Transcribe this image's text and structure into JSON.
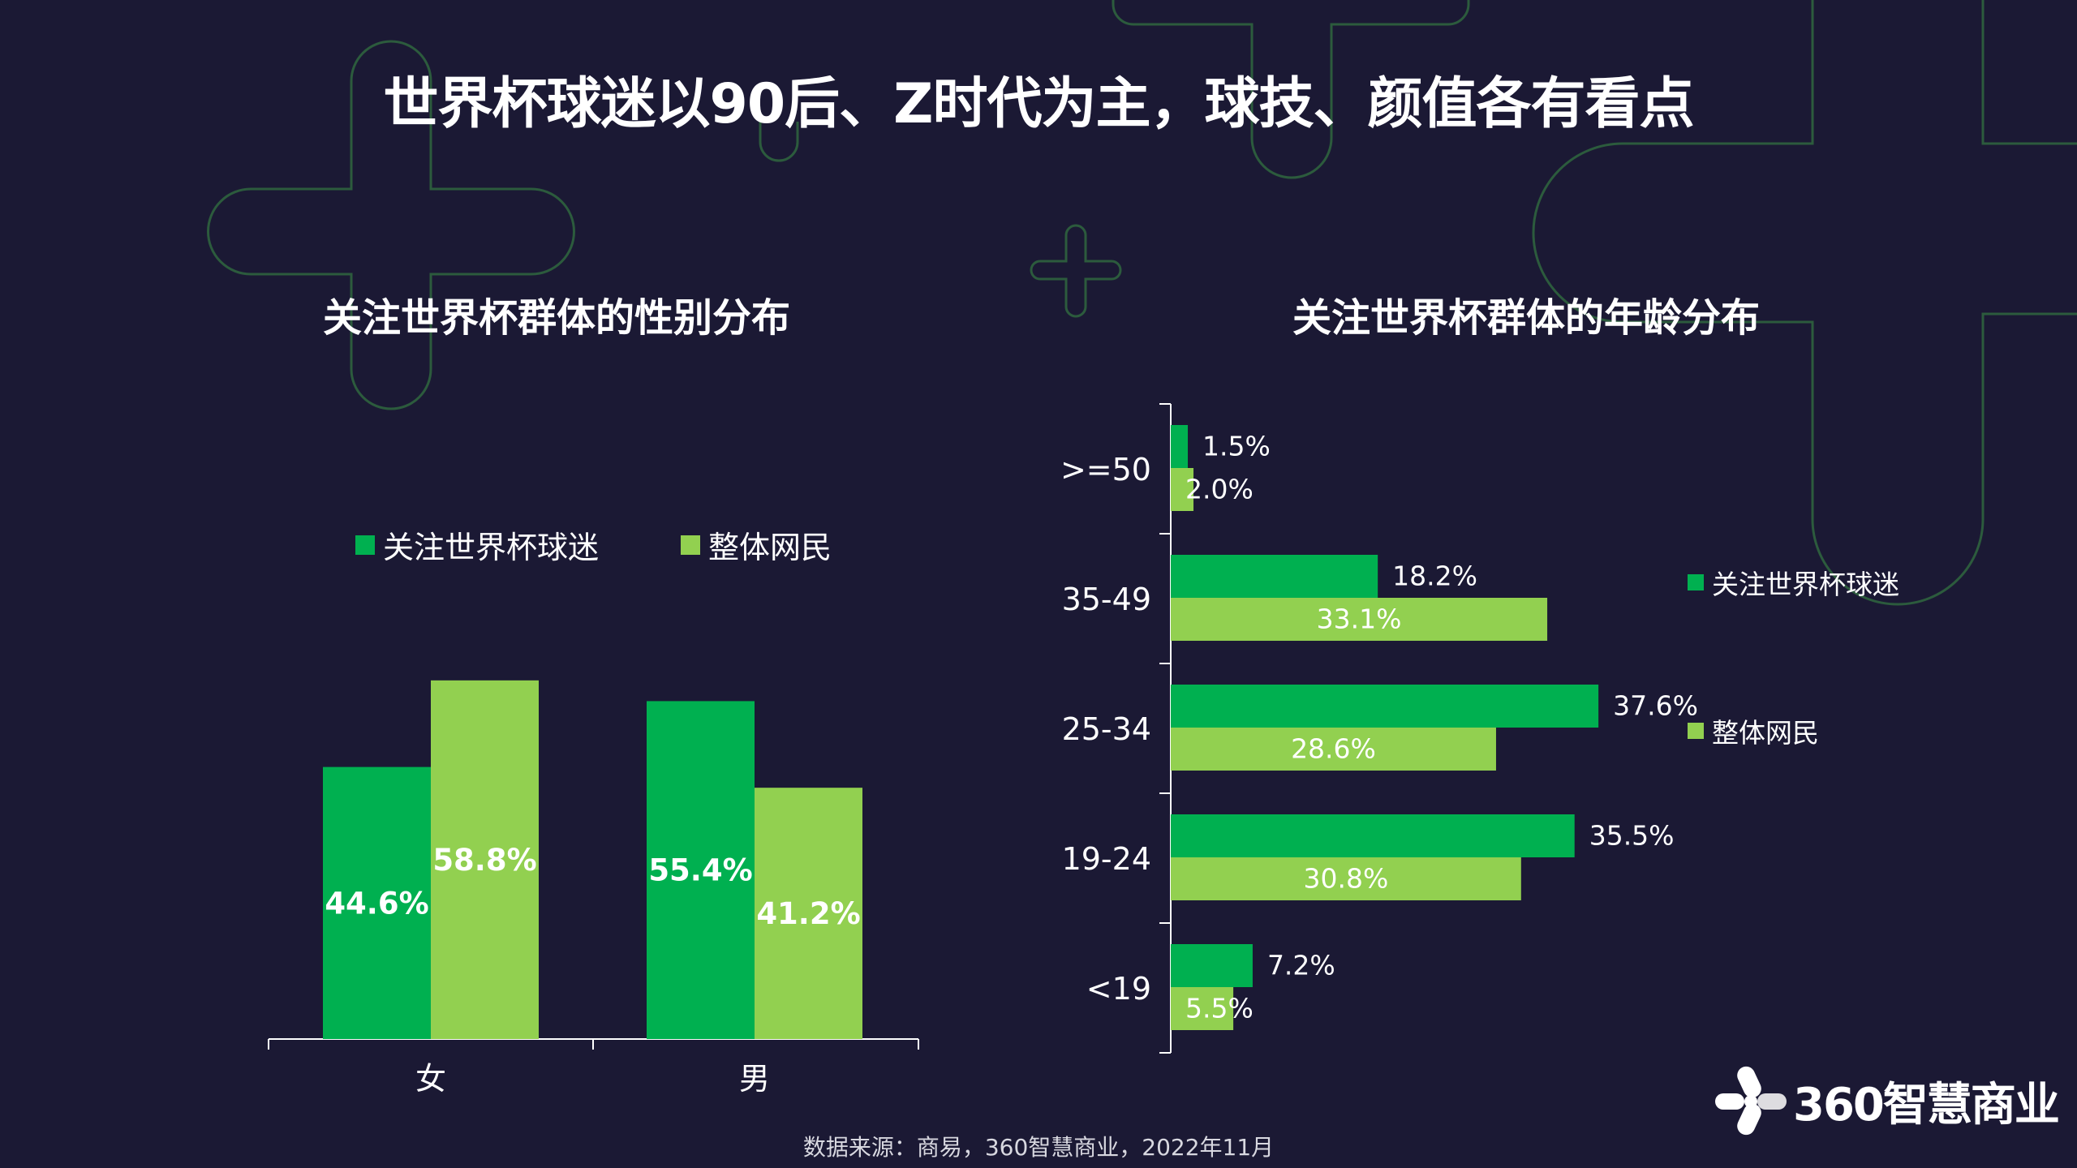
{
  "title": "世界杯球迷以90后、Z时代为主，球技、颜值各有看点",
  "colors": {
    "background": "#1b1934",
    "fans": "#00b050",
    "netizens": "#92d050",
    "deco": "#2c5b3d"
  },
  "source": "数据来源：商易，360智慧商业，2022年11月",
  "logo": {
    "text": "360智慧商业",
    "icon": "360-logo-icon"
  },
  "chart_data": [
    {
      "type": "bar",
      "orientation": "vertical",
      "title": "关注世界杯群体的性别分布",
      "categories": [
        "女",
        "男"
      ],
      "series": [
        {
          "name": "关注世界杯球迷",
          "values": [
            44.6,
            55.4
          ],
          "labels": [
            "44.6%",
            "55.4%"
          ],
          "color": "#00b050"
        },
        {
          "name": "整体网民",
          "values": [
            58.8,
            41.2
          ],
          "labels": [
            "58.8%",
            "41.2%"
          ],
          "color": "#92d050"
        }
      ],
      "unit": "%",
      "legend": "top",
      "grid": false
    },
    {
      "type": "bar",
      "orientation": "horizontal",
      "title": "关注世界杯群体的年龄分布",
      "categories": [
        ">=50",
        "35-49",
        "25-34",
        "19-24",
        "<19"
      ],
      "series": [
        {
          "name": "关注世界杯球迷",
          "values": [
            1.5,
            18.2,
            37.6,
            35.5,
            7.2
          ],
          "labels": [
            "1.5%",
            "18.2%",
            "37.6%",
            "35.5%",
            "7.2%"
          ],
          "color": "#00b050"
        },
        {
          "name": "整体网民",
          "values": [
            2.0,
            33.1,
            28.6,
            30.8,
            5.5
          ],
          "labels": [
            "2.0%",
            "33.1%",
            "28.6%",
            "30.8%",
            "5.5%"
          ],
          "color": "#92d050"
        }
      ],
      "unit": "%",
      "legend": "right",
      "grid": false
    }
  ]
}
